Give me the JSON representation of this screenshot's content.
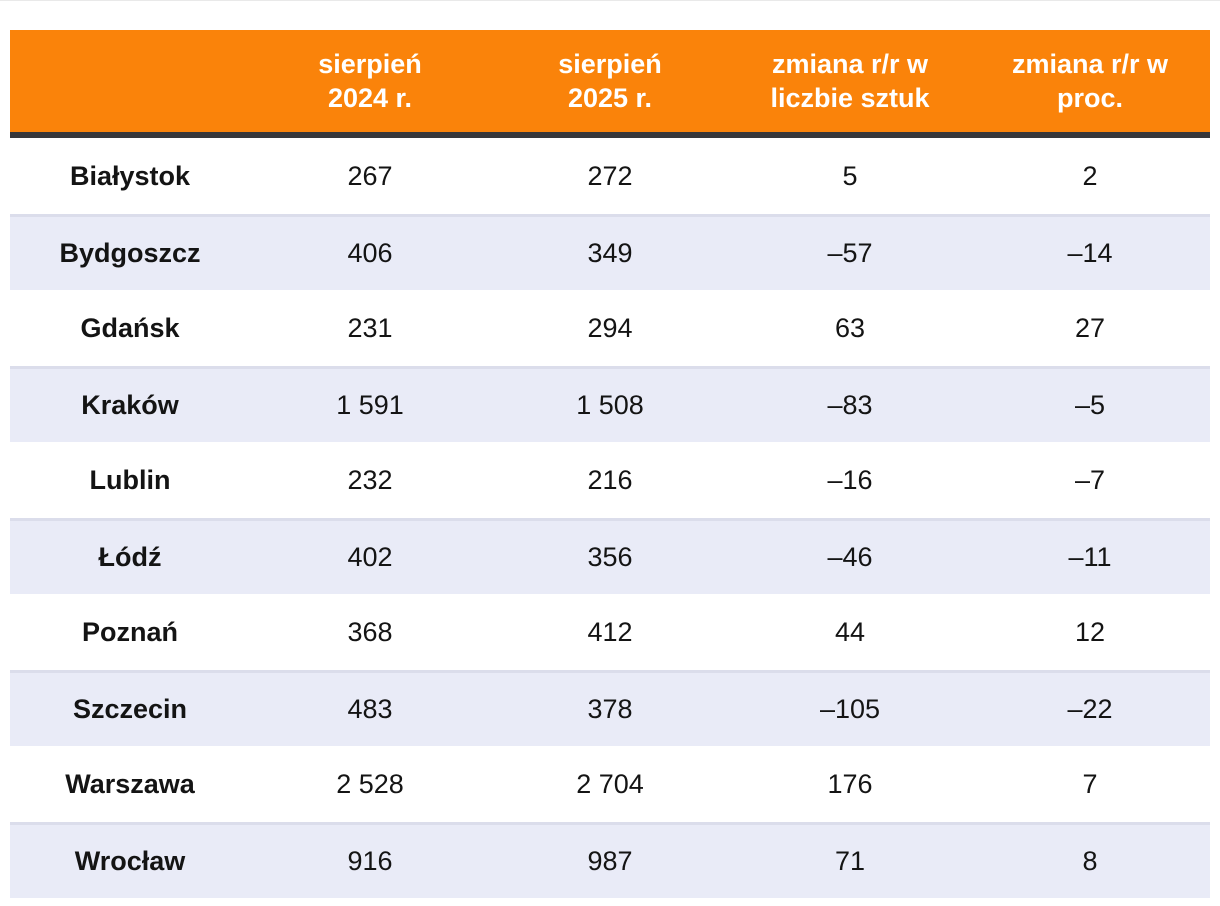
{
  "colors": {
    "header_bg": "#FA830A",
    "header_text": "#FFFFFF",
    "header_underline": "#37373A",
    "row_alt_bg": "#E9EBF7",
    "row_alt_top_border": "#DBDDEB",
    "body_text": "#141414",
    "top_hairline": "#E9E9E9"
  },
  "table": {
    "header": [
      "",
      "sierpień\n2024 r.",
      "sierpień\n2025 r.",
      "zmiana r/r w\nliczbie sztuk",
      "zmiana r/r w\nproc."
    ],
    "rows": [
      {
        "city": "Białystok",
        "aug2024": "267",
        "aug2025": "272",
        "change_units": "5",
        "change_pct": "2"
      },
      {
        "city": "Bydgoszcz",
        "aug2024": "406",
        "aug2025": "349",
        "change_units": "–57",
        "change_pct": "–14"
      },
      {
        "city": "Gdańsk",
        "aug2024": "231",
        "aug2025": "294",
        "change_units": "63",
        "change_pct": "27"
      },
      {
        "city": "Kraków",
        "aug2024": "1 591",
        "aug2025": "1 508",
        "change_units": "–83",
        "change_pct": "–5"
      },
      {
        "city": "Lublin",
        "aug2024": "232",
        "aug2025": "216",
        "change_units": "–16",
        "change_pct": "–7"
      },
      {
        "city": "Łódź",
        "aug2024": "402",
        "aug2025": "356",
        "change_units": "–46",
        "change_pct": "–11"
      },
      {
        "city": "Poznań",
        "aug2024": "368",
        "aug2025": "412",
        "change_units": "44",
        "change_pct": "12"
      },
      {
        "city": "Szczecin",
        "aug2024": "483",
        "aug2025": "378",
        "change_units": "–105",
        "change_pct": "–22"
      },
      {
        "city": "Warszawa",
        "aug2024": "2 528",
        "aug2025": "2 704",
        "change_units": "176",
        "change_pct": "7"
      },
      {
        "city": "Wrocław",
        "aug2024": "916",
        "aug2025": "987",
        "change_units": "71",
        "change_pct": "8"
      }
    ]
  },
  "chart_data": {
    "type": "table",
    "columns": [
      "",
      "sierpień 2024 r.",
      "sierpień 2025 r.",
      "zmiana r/r w liczbie sztuk",
      "zmiana r/r w proc."
    ],
    "rows": [
      [
        "Białystok",
        267,
        272,
        5,
        2
      ],
      [
        "Bydgoszcz",
        406,
        349,
        -57,
        -14
      ],
      [
        "Gdańsk",
        231,
        294,
        63,
        27
      ],
      [
        "Kraków",
        1591,
        1508,
        -83,
        -5
      ],
      [
        "Lublin",
        232,
        216,
        -16,
        -7
      ],
      [
        "Łódź",
        402,
        356,
        -46,
        -11
      ],
      [
        "Poznań",
        368,
        412,
        44,
        12
      ],
      [
        "Szczecin",
        483,
        378,
        -105,
        -22
      ],
      [
        "Warszawa",
        2528,
        2704,
        176,
        7
      ],
      [
        "Wrocław",
        916,
        987,
        71,
        8
      ]
    ]
  }
}
